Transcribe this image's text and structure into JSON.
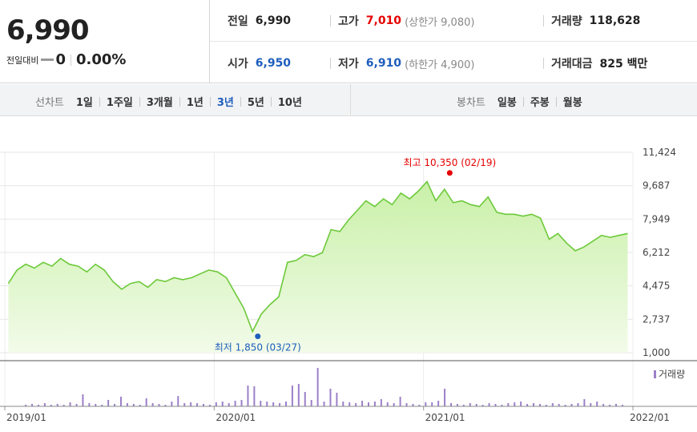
{
  "summary": {
    "price": "6,990",
    "change_label": "전일대비",
    "change_value": "0",
    "change_rate": "0.00%"
  },
  "stats": {
    "prev_close": {
      "label": "전일",
      "value": "6,990"
    },
    "high": {
      "label": "고가",
      "value": "7,010",
      "sub": "(상한가 9,080)"
    },
    "volume": {
      "label": "거래량",
      "value": "118,628"
    },
    "open": {
      "label": "시가",
      "value": "6,950"
    },
    "low": {
      "label": "저가",
      "value": "6,910",
      "sub": "(하한가 4,900)"
    },
    "amount": {
      "label": "거래대금",
      "value": "825 백만"
    }
  },
  "periods": {
    "title": "선차트",
    "items": [
      "1일",
      "1주일",
      "3개월",
      "1년",
      "3년",
      "5년",
      "10년"
    ],
    "active": "3년"
  },
  "candle": {
    "title": "봉차트",
    "items": [
      "일봉",
      "주봉",
      "월봉"
    ]
  },
  "colors": {
    "line": "#6cc93a",
    "fill_top": "#c9f0a8",
    "fill_bottom": "#f2fbe9",
    "volume": "#9b80c9",
    "high": "#e60000",
    "low": "#1e5ebd"
  },
  "chart_data": {
    "type": "area",
    "x_tick_labels": [
      "2019/01",
      "2020/01",
      "2021/01",
      "2022/01"
    ],
    "y_ticks": [
      "11,424",
      "9,687",
      "7,949",
      "6,212",
      "4,475",
      "2,737",
      "1,000"
    ],
    "ylim": [
      1000,
      11424
    ],
    "x": [
      "2019-01",
      "2019-01",
      "2019-02",
      "2019-02",
      "2019-03",
      "2019-03",
      "2019-04",
      "2019-04",
      "2019-05",
      "2019-05",
      "2019-06",
      "2019-06",
      "2019-07",
      "2019-07",
      "2019-08",
      "2019-08",
      "2019-09",
      "2019-09",
      "2019-10",
      "2019-10",
      "2019-11",
      "2019-11",
      "2019-12",
      "2019-12",
      "2020-01",
      "2020-01",
      "2020-02",
      "2020-02",
      "2020-03",
      "2020-03",
      "2020-04",
      "2020-04",
      "2020-05",
      "2020-05",
      "2020-06",
      "2020-06",
      "2020-07",
      "2020-07",
      "2020-08",
      "2020-08",
      "2020-09",
      "2020-09",
      "2020-10",
      "2020-10",
      "2020-11",
      "2020-11",
      "2020-12",
      "2020-12",
      "2021-01",
      "2021-01",
      "2021-02",
      "2021-02",
      "2021-03",
      "2021-03",
      "2021-04",
      "2021-04",
      "2021-05",
      "2021-05",
      "2021-06",
      "2021-06",
      "2021-07",
      "2021-07",
      "2021-08",
      "2021-08",
      "2021-09",
      "2021-09",
      "2021-10",
      "2021-10",
      "2021-11",
      "2021-11",
      "2021-12",
      "2021-12"
    ],
    "series": [
      {
        "values": [
          4600,
          5300,
          5600,
          5400,
          5700,
          5500,
          5900,
          5600,
          5500,
          5200,
          5600,
          5300,
          4700,
          4300,
          4600,
          4700,
          4400,
          4800,
          4700,
          4900,
          4800,
          4900,
          5100,
          5300,
          5200,
          4900,
          4100,
          3300,
          2100,
          3000,
          3500,
          3900,
          5700,
          5800,
          6100,
          6000,
          6200,
          7400,
          7300,
          7900,
          8400,
          8900,
          8600,
          9000,
          8700,
          9300,
          9000,
          9400,
          9900,
          8900,
          9500,
          8800,
          8900,
          8700,
          8600,
          9100,
          8300,
          8200,
          8200,
          8100,
          8200,
          8000,
          6900,
          7200,
          6700,
          6300,
          6500,
          6800,
          7100,
          7000,
          7100,
          7200
        ]
      }
    ],
    "volume": {
      "label": "거래량",
      "values": [
        2,
        3,
        2,
        4,
        2,
        3,
        2,
        5,
        3,
        15,
        4,
        3,
        2,
        8,
        3,
        12,
        4,
        3,
        2,
        10,
        4,
        3,
        2,
        6,
        13,
        4,
        5,
        4,
        3,
        2,
        5,
        6,
        4,
        7,
        8,
        26,
        25,
        7,
        6,
        5,
        4,
        6,
        26,
        28,
        18,
        8,
        48,
        6,
        22,
        17,
        6,
        5,
        4,
        7,
        5,
        6,
        9,
        5,
        4,
        12,
        4,
        3,
        2,
        5,
        5,
        7,
        22,
        4,
        3,
        2,
        4,
        3,
        2,
        4,
        3,
        2,
        4,
        5,
        6,
        3,
        4,
        3,
        2,
        4,
        3,
        2,
        3,
        4,
        9,
        4,
        6,
        3,
        2,
        3,
        2
      ]
    },
    "annotations": {
      "high": {
        "text": "최고 10,350 (02/19)",
        "x": "2021-02",
        "y": 10350
      },
      "low": {
        "text": "최저 1,850 (03/27)",
        "x": "2020-03",
        "y": 1850
      }
    }
  }
}
